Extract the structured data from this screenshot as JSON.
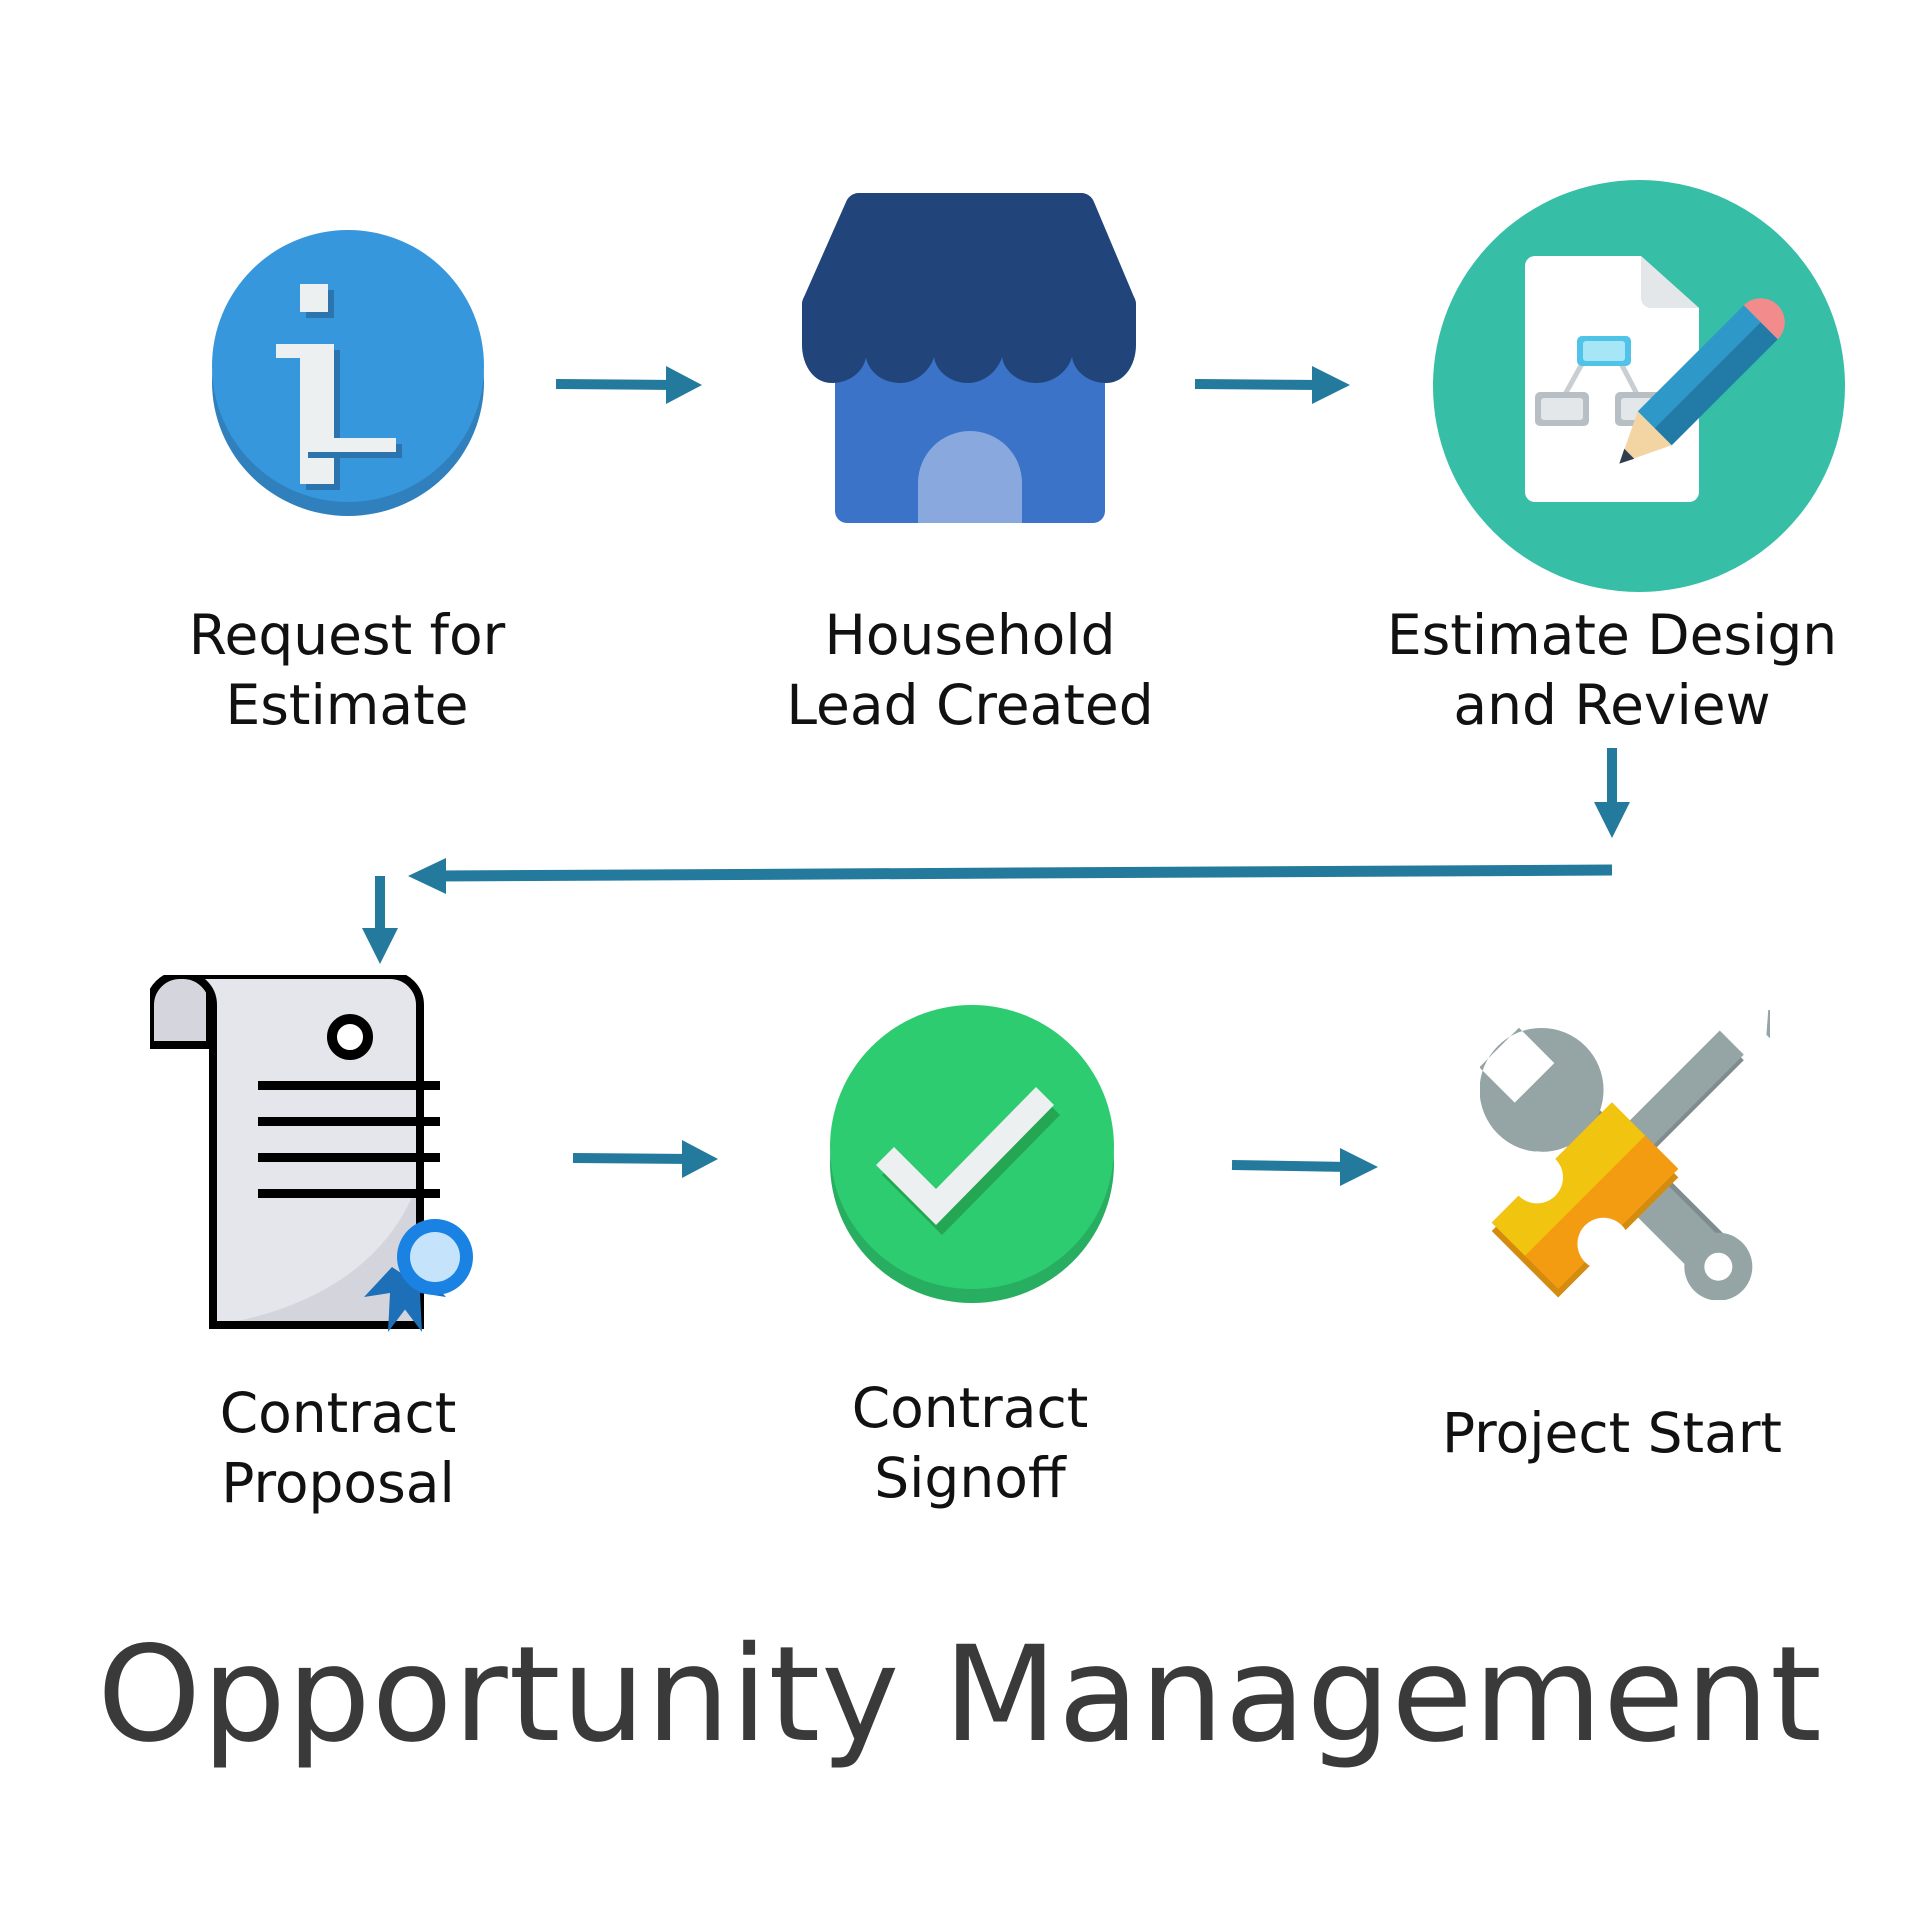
{
  "title": "Opportunity Management",
  "steps": [
    {
      "lines": [
        "Request for",
        "Estimate"
      ],
      "icon": "info-icon"
    },
    {
      "lines": [
        "Household",
        "Lead Created"
      ],
      "icon": "storefront-icon"
    },
    {
      "lines": [
        "Estimate Design",
        "and Review"
      ],
      "icon": "design-document-icon"
    },
    {
      "lines": [
        "Contract",
        "Proposal"
      ],
      "icon": "certificate-scroll-icon"
    },
    {
      "lines": [
        "Contract",
        "Signoff"
      ],
      "icon": "checkmark-icon"
    },
    {
      "lines": [
        "Project Start"
      ],
      "icon": "tools-icon"
    }
  ],
  "colors": {
    "arrow": "#237a9c",
    "title": "#3a3a3a",
    "info": "#3797dc",
    "store_roof": "#21457a",
    "store_body": "#3b73c8",
    "design_bg": "#37bea6",
    "check": "#2ecc71",
    "wrench": "#95a5a6",
    "screwdriver": "#f39c12"
  }
}
